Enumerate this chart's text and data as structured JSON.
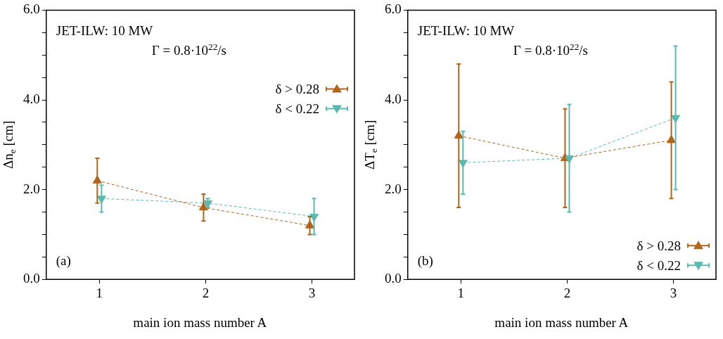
{
  "chart_data": [
    {
      "type": "line",
      "ylabel": "Δn$_{e}$ [cm]",
      "xlabel": "main ion mass number A",
      "annotations": [
        "JET-ILW: 10 MW",
        "Γ = 0.8·10$^{22}$/s",
        "(a)"
      ],
      "xlim": [
        0.5,
        3.4
      ],
      "xticks": [
        1,
        2,
        3
      ],
      "ylim": [
        0,
        6
      ],
      "yticks": [
        {
          "value": 0,
          "label": "0.0"
        },
        {
          "value": 0.5,
          "label": null
        },
        {
          "value": 1,
          "label": null
        },
        {
          "value": 1.5,
          "label": null
        },
        {
          "value": 2,
          "label": "2.0"
        },
        {
          "value": 2.5,
          "label": null
        },
        {
          "value": 3,
          "label": null
        },
        {
          "value": 3.5,
          "label": null
        },
        {
          "value": 4,
          "label": "4.0"
        },
        {
          "value": 4.5,
          "label": null
        },
        {
          "value": 5,
          "label": null
        },
        {
          "value": 5.5,
          "label": null
        },
        {
          "value": 6,
          "label": "6.0"
        }
      ],
      "grid": false,
      "legend": "right",
      "line_style": "dashed",
      "marker": "triangle",
      "series": [
        {
          "name": "δ > 0.28",
          "color": "#b0651e",
          "x": [
            0.98,
            1.98,
            2.98
          ],
          "values": [
            2.2,
            1.6,
            1.2
          ],
          "errors": [
            [
              1.7,
              2.7
            ],
            [
              1.3,
              1.9
            ],
            [
              1.0,
              1.4
            ]
          ]
        },
        {
          "name": "δ < 0.22",
          "color": "#5bbab0",
          "x": [
            1.02,
            2.02,
            3.02
          ],
          "values": [
            1.8,
            1.7,
            1.4
          ],
          "errors": [
            [
              1.5,
              2.1
            ],
            [
              1.6,
              1.8
            ],
            [
              1.0,
              1.8
            ]
          ]
        }
      ]
    },
    {
      "type": "line",
      "ylabel": "ΔT$_{e}$ [cm]",
      "xlabel": "main ion mass number A",
      "annotations": [
        "JET-ILW: 10 MW",
        "Γ = 0.8·10$^{22}$/s",
        "(b)"
      ],
      "xlim": [
        0.5,
        3.4
      ],
      "xticks": [
        1,
        2,
        3
      ],
      "ylim": [
        0,
        6
      ],
      "yticks": [
        {
          "value": 0,
          "label": "0.0"
        },
        {
          "value": 0.5,
          "label": null
        },
        {
          "value": 1,
          "label": null
        },
        {
          "value": 1.5,
          "label": null
        },
        {
          "value": 2,
          "label": "2.0"
        },
        {
          "value": 2.5,
          "label": null
        },
        {
          "value": 3,
          "label": null
        },
        {
          "value": 3.5,
          "label": null
        },
        {
          "value": 4,
          "label": "4.0"
        },
        {
          "value": 4.5,
          "label": null
        },
        {
          "value": 5,
          "label": null
        },
        {
          "value": 5.5,
          "label": null
        },
        {
          "value": 6,
          "label": "6.0"
        }
      ],
      "grid": false,
      "legend": "bottom right",
      "line_style": "dashed",
      "marker": "triangle",
      "series": [
        {
          "name": "δ > 0.28",
          "color": "#b0651e",
          "x": [
            0.98,
            1.98,
            2.98
          ],
          "values": [
            3.2,
            2.7,
            3.1
          ],
          "errors": [
            [
              1.6,
              4.8
            ],
            [
              1.6,
              3.8
            ],
            [
              1.8,
              4.4
            ]
          ]
        },
        {
          "name": "δ < 0.22",
          "color": "#5bbab0",
          "x": [
            1.02,
            2.02,
            3.02
          ],
          "values": [
            2.6,
            2.7,
            3.6
          ],
          "errors": [
            [
              1.9,
              3.3
            ],
            [
              1.5,
              3.9
            ],
            [
              2.0,
              5.2
            ]
          ]
        }
      ]
    }
  ]
}
